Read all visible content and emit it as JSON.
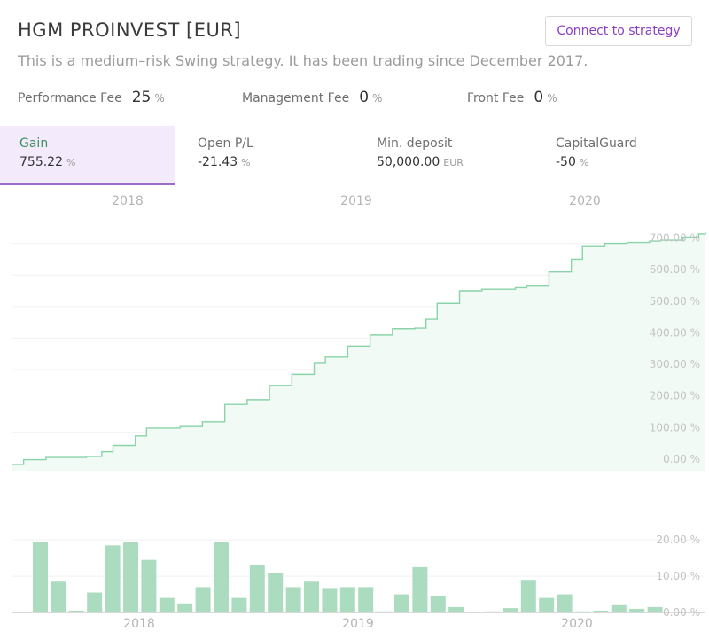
{
  "header": {
    "title": "HGM PROINVEST [EUR]",
    "subtitle": "This is a medium–risk Swing strategy. It has been trading since December 2017.",
    "connect_label": "Connect to strategy"
  },
  "fees": [
    {
      "label": "Performance Fee",
      "value": "25",
      "unit": "%"
    },
    {
      "label": "Management Fee",
      "value": "0",
      "unit": "%"
    },
    {
      "label": "Front Fee",
      "value": "0",
      "unit": "%"
    }
  ],
  "tabs": [
    {
      "label": "Gain",
      "value": "755.22",
      "unit": "%"
    },
    {
      "label": "Open P/L",
      "value": "-21.43",
      "unit": "%"
    },
    {
      "label": "Min. deposit",
      "value": "50,000.00",
      "unit": "EUR"
    },
    {
      "label": "CapitalGuard",
      "value": "-50",
      "unit": "%"
    }
  ],
  "colors": {
    "line": "#89d3a8",
    "area": "#f1faf4",
    "bar": "#acdcbf",
    "accent": "#8a3fc3",
    "active_tab_bg": "#f3ebfb"
  },
  "chart_data": [
    {
      "type": "area",
      "xlabel": "",
      "ylabel": "",
      "x_ticks": [
        "2018",
        "2019",
        "2020"
      ],
      "x_tick_dates": [
        2018.0,
        2019.0,
        2020.0
      ],
      "x_range": [
        2017.45,
        2020.55
      ],
      "ylim": [
        -20,
        755
      ],
      "y_ticks": [
        0,
        100,
        200,
        300,
        400,
        500,
        600,
        700
      ],
      "y_tick_labels": [
        "0.00 %",
        "100.00 %",
        "200.00 %",
        "300.00 %",
        "400.00 %",
        "500.00 %",
        "600.00 %",
        "700.00 %"
      ],
      "series": [
        {
          "x": [
            2017.45,
            2017.5,
            2017.6,
            2017.78,
            2017.85,
            2017.9,
            2018.0,
            2018.05,
            2018.2,
            2018.3,
            2018.4,
            2018.5,
            2018.6,
            2018.7,
            2018.8,
            2018.85,
            2018.95,
            2019.05,
            2019.15,
            2019.25,
            2019.3,
            2019.35,
            2019.45,
            2019.55,
            2019.7,
            2019.75,
            2019.85,
            2019.95,
            2020.0,
            2020.1,
            2020.2,
            2020.3,
            2020.35,
            2020.45,
            2020.52,
            2020.55
          ],
          "y": [
            0,
            15,
            22,
            25,
            40,
            60,
            90,
            115,
            120,
            135,
            190,
            205,
            250,
            285,
            320,
            340,
            375,
            410,
            430,
            432,
            460,
            510,
            550,
            555,
            560,
            565,
            610,
            650,
            690,
            700,
            703,
            707,
            710,
            720,
            730,
            735
          ]
        }
      ]
    },
    {
      "type": "bar",
      "xlabel": "",
      "ylabel": "",
      "x_ticks": [
        "2018",
        "2019",
        "2020"
      ],
      "ylim": [
        0,
        22
      ],
      "y_ticks": [
        0,
        10,
        20
      ],
      "y_tick_labels": [
        "0.00 %",
        "10.00 %",
        "20.00 %"
      ],
      "values": [
        19.5,
        8.5,
        0.5,
        5.5,
        18.5,
        19.5,
        14.5,
        4,
        2.5,
        7,
        19.5,
        4,
        13,
        11,
        7,
        8.5,
        6.5,
        7,
        7,
        0.3,
        5,
        12.5,
        4.5,
        1.5,
        0,
        0.3,
        1.2,
        9,
        4,
        5,
        0.3,
        0.5,
        2,
        1,
        1.5
      ]
    }
  ]
}
